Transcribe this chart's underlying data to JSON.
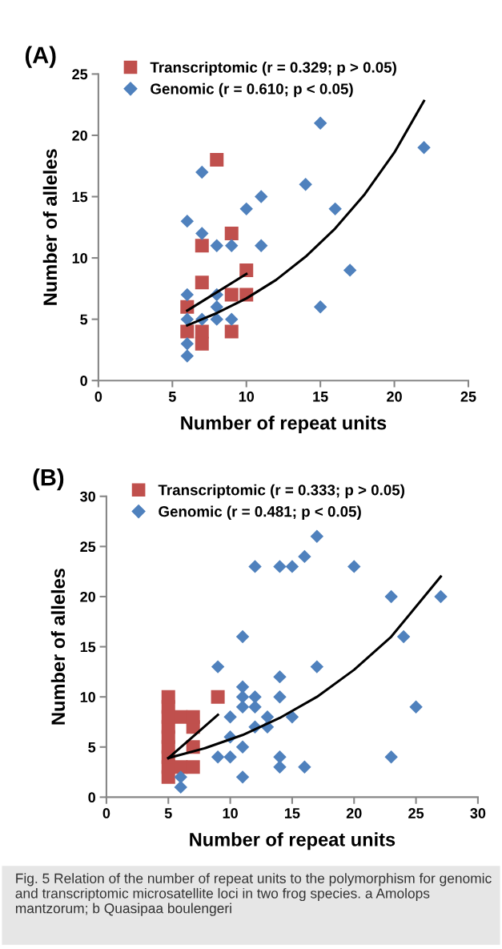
{
  "chart_data": [
    {
      "type": "scatter",
      "title": "(A)",
      "xlabel": "Number of repeat units",
      "ylabel": "Number of alleles",
      "xlim": [
        0,
        25
      ],
      "ylim": [
        0,
        25
      ],
      "xticks": [
        0,
        5,
        10,
        15,
        20,
        25
      ],
      "yticks": [
        0,
        5,
        10,
        15,
        20,
        25
      ],
      "grid": false,
      "legend": "top left",
      "series": [
        {
          "name": "Transcriptomic (r = 0.329; p > 0.05)",
          "color": "#c0504d",
          "marker": "square",
          "x": [
            8,
            9,
            7,
            7,
            10,
            9,
            10,
            6,
            6,
            7,
            7,
            9
          ],
          "values": [
            18,
            12,
            11,
            8,
            9,
            7,
            7,
            6,
            4,
            4,
            3,
            4
          ]
        },
        {
          "name": "Genomic (r = 0.610; p < 0.05)",
          "color": "#4f81bd",
          "marker": "diamond",
          "x": [
            6,
            6,
            6,
            6,
            6,
            7,
            7,
            7,
            8,
            8,
            8,
            8,
            9,
            9,
            10,
            11,
            11,
            14,
            15,
            15,
            16,
            17,
            22
          ],
          "values": [
            13,
            7,
            5,
            3,
            2,
            17,
            12,
            5,
            11,
            7,
            6,
            5,
            11,
            5,
            14,
            15,
            11,
            16,
            21,
            6,
            14,
            9,
            19
          ]
        },
        {
          "type": "line",
          "color": "#000000",
          "x": [
            6,
            10
          ],
          "values": [
            5.7,
            8.7
          ]
        },
        {
          "type": "line",
          "color": "#000000",
          "x": [
            6,
            8,
            10,
            12,
            14,
            16,
            18,
            20,
            22
          ],
          "values": [
            4.5,
            5.5,
            6.7,
            8.2,
            10.1,
            12.4,
            15.2,
            18.6,
            22.8
          ]
        }
      ]
    },
    {
      "type": "scatter",
      "title": "(B)",
      "xlabel": "Number of repeat units",
      "ylabel": "Number of alleles",
      "xlim": [
        0,
        30
      ],
      "ylim": [
        0,
        30
      ],
      "xticks": [
        0,
        5,
        10,
        15,
        20,
        25,
        30
      ],
      "yticks": [
        0,
        5,
        10,
        15,
        20,
        25,
        30
      ],
      "grid": false,
      "legend": "top left",
      "series": [
        {
          "name": "Transcriptomic (r = 0.333; p > 0.05)",
          "color": "#c0504d",
          "marker": "square",
          "x": [
            5,
            5,
            5,
            5,
            5,
            5,
            5,
            5,
            5,
            6,
            6,
            7,
            7,
            7,
            7,
            9
          ],
          "values": [
            2,
            3,
            4,
            5,
            6,
            7,
            8,
            9,
            10,
            3,
            8,
            3,
            5,
            7,
            8,
            10
          ]
        },
        {
          "name": "Genomic (r = 0.481; p < 0.05)",
          "color": "#4f81bd",
          "marker": "diamond",
          "x": [
            6,
            6,
            9,
            9,
            10,
            10,
            10,
            11,
            11,
            11,
            11,
            11,
            11,
            12,
            12,
            12,
            12,
            13,
            13,
            14,
            14,
            14,
            14,
            14,
            15,
            15,
            16,
            16,
            17,
            17,
            20,
            23,
            23,
            24,
            25,
            27
          ],
          "values": [
            1,
            2,
            13,
            4,
            8,
            6,
            4,
            16,
            11,
            10,
            9,
            5,
            2,
            23,
            10,
            9,
            7,
            8,
            7,
            23,
            12,
            10,
            4,
            3,
            23,
            8,
            24,
            3,
            26,
            13,
            23,
            20,
            4,
            16,
            9,
            20
          ]
        },
        {
          "type": "line",
          "color": "#000000",
          "x": [
            5,
            9
          ],
          "values": [
            3.9,
            8.2
          ]
        },
        {
          "type": "line",
          "color": "#000000",
          "x": [
            5,
            8,
            11,
            14,
            17,
            20,
            23,
            27
          ],
          "values": [
            3.9,
            4.9,
            6.2,
            7.9,
            10.0,
            12.7,
            16.0,
            22.0
          ]
        }
      ],
      "annotations": [
        "Fig. 5 Relation of the number of repeat units to the polymorphism for genomic and transcriptomic microsatellite loci in two frog species. a Amolops mantzorum; b Quasipaa boulengeri"
      ]
    }
  ]
}
